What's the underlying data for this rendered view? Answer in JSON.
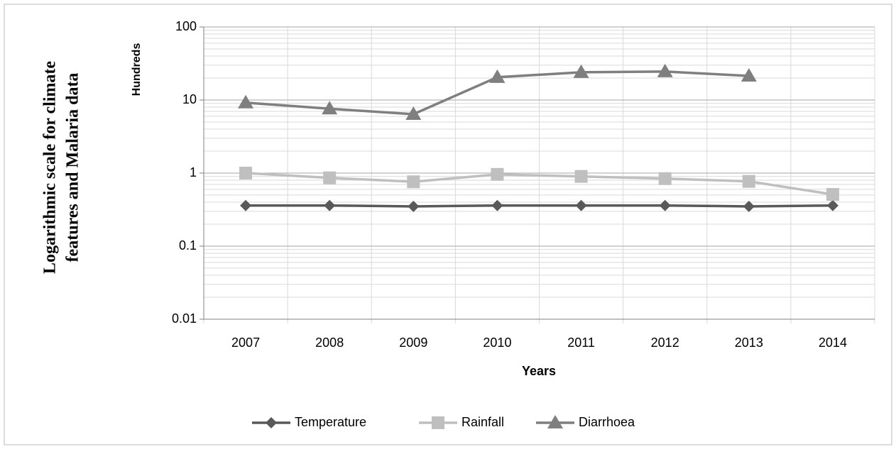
{
  "chart_data": {
    "type": "line",
    "side_title": [
      "Logarithmic scale for climate",
      "features and Malaria  data"
    ],
    "y_label": "Hundreds",
    "x_label": "Years",
    "categories": [
      "2007",
      "2008",
      "2009",
      "2010",
      "2011",
      "2012",
      "2013",
      "2014"
    ],
    "series": [
      {
        "name": "Temperature",
        "color": "#595959",
        "marker": "diamond",
        "values": [
          0.36,
          0.36,
          0.35,
          0.36,
          0.36,
          0.36,
          0.35,
          0.36
        ]
      },
      {
        "name": "Rainfall",
        "color": "#bfbfbf",
        "marker": "square",
        "values": [
          1.0,
          0.86,
          0.76,
          0.96,
          0.9,
          0.84,
          0.77,
          0.51
        ]
      },
      {
        "name": "Diarrhoea",
        "color": "#7f7f7f",
        "marker": "triangle",
        "values": [
          9.2,
          7.6,
          6.4,
          20.5,
          24,
          24.5,
          21.4,
          null
        ]
      }
    ],
    "log_scale": true,
    "ylim": [
      0.01,
      100
    ],
    "yticks": [
      0.01,
      0.1,
      1,
      10,
      100
    ],
    "grid": true,
    "minor_grid": true,
    "legend": "bottom"
  }
}
